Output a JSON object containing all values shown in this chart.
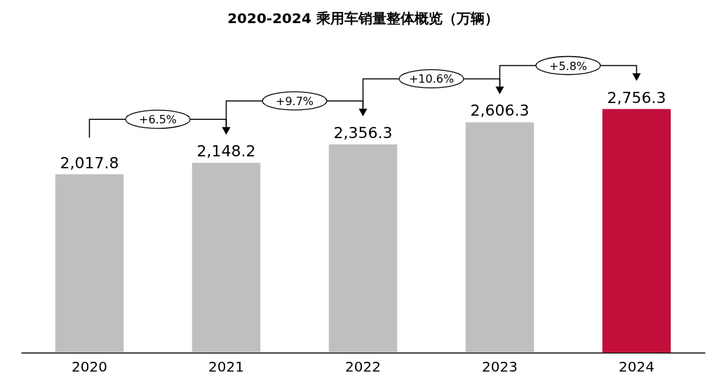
{
  "chart_data": {
    "type": "bar",
    "title": "2020-2024 乘用车销量整体概览（万辆）",
    "categories": [
      "2020",
      "2021",
      "2022",
      "2023",
      "2024"
    ],
    "values": [
      2017.8,
      2148.2,
      2356.3,
      2606.3,
      2756.3
    ],
    "value_labels": [
      "2,017.8",
      "2,148.2",
      "2,356.3",
      "2,606.3",
      "2,756.3"
    ],
    "colors": [
      "#bfbfbf",
      "#bfbfbf",
      "#bfbfbf",
      "#bfbfbf",
      "#c20e3a"
    ],
    "annotations": [
      "+6.5%",
      "+9.7%",
      "+10.6%",
      "+5.8%"
    ],
    "tick_labels": "x",
    "grid": false,
    "legend": false
  }
}
